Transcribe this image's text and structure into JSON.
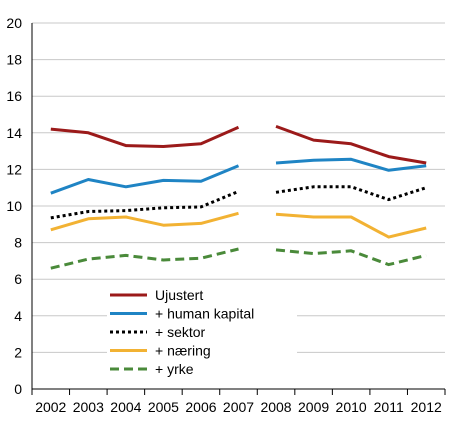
{
  "chart_data": {
    "type": "line",
    "title": "",
    "xlabel": "",
    "ylabel": "",
    "x": [
      "2002",
      "2003",
      "2004",
      "2005",
      "2006",
      "2007",
      "2008",
      "2009",
      "2010",
      "2011",
      "2012"
    ],
    "ylim": [
      0,
      20
    ],
    "yticks": [
      "0",
      "2",
      "4",
      "6",
      "8",
      "10",
      "12",
      "14",
      "16",
      "18",
      "20"
    ],
    "grid": "horizontal",
    "legend_position": "bottom-left",
    "series": [
      {
        "name": "Ujustert",
        "color": "#9b1a1a",
        "dash": "solid",
        "values": [
          14.2,
          14.0,
          13.3,
          13.25,
          13.4,
          14.3,
          14.35,
          13.6,
          13.4,
          12.7,
          12.35
        ]
      },
      {
        "name": "+ human kapital",
        "color": "#1f84c4",
        "dash": "solid",
        "values": [
          10.7,
          11.45,
          11.05,
          11.4,
          11.35,
          12.2,
          12.35,
          12.5,
          12.55,
          11.95,
          12.2
        ]
      },
      {
        "name": "+ sektor",
        "color": "#000000",
        "dash": "dotted",
        "values": [
          9.35,
          9.7,
          9.75,
          9.9,
          9.95,
          10.8,
          10.75,
          11.05,
          11.05,
          10.35,
          11.0
        ]
      },
      {
        "name": "+ næring",
        "color": "#f2b233",
        "dash": "solid",
        "values": [
          8.7,
          9.3,
          9.4,
          8.95,
          9.05,
          9.6,
          9.55,
          9.4,
          9.4,
          8.3,
          8.8
        ]
      },
      {
        "name": "+ yrke",
        "color": "#4a8a3a",
        "dash": "dashed",
        "values": [
          6.6,
          7.1,
          7.3,
          7.05,
          7.15,
          7.65,
          7.6,
          7.4,
          7.55,
          6.8,
          7.3
        ]
      }
    ]
  }
}
